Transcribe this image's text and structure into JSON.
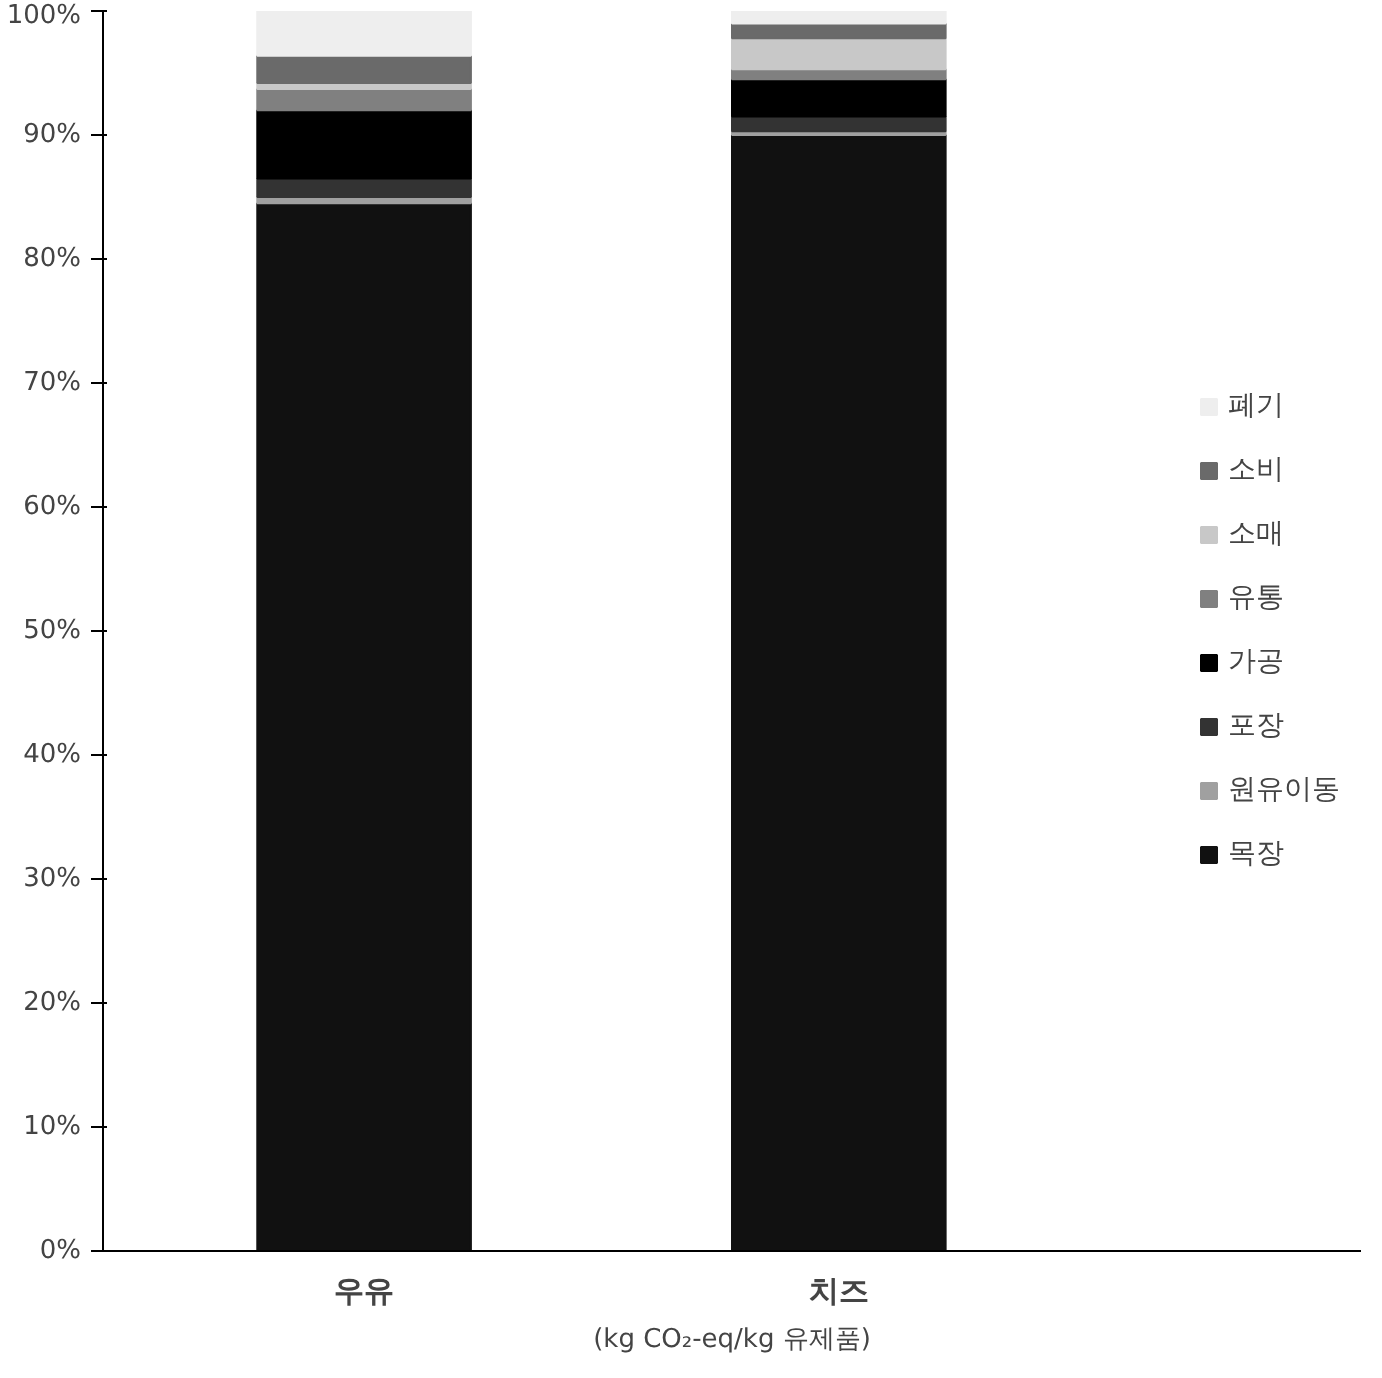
{
  "chart_data": {
    "type": "bar",
    "stacked": true,
    "categories": [
      "우유",
      "치즈"
    ],
    "xlabel": "(kg CO₂-eq/kg 유제품)",
    "series": [
      {
        "name": "목장",
        "color": "#111111",
        "values": [
          84.5,
          90
        ]
      },
      {
        "name": "원유이동",
        "color": "#a0a0a0",
        "values": [
          0.5,
          0.3
        ]
      },
      {
        "name": "포장",
        "color": "#333333",
        "values": [
          1.5,
          1.2
        ]
      },
      {
        "name": "가공",
        "color": "#000000",
        "values": [
          5.5,
          3
        ]
      },
      {
        "name": "유통",
        "color": "#808080",
        "values": [
          1.7,
          0.8
        ]
      },
      {
        "name": "소매",
        "color": "#c8c8c8",
        "values": [
          0.5,
          2.5
        ]
      },
      {
        "name": "소비",
        "color": "#6a6a6a",
        "values": [
          2.2,
          1.2
        ]
      },
      {
        "name": "폐기",
        "color": "#eeeeee",
        "values": [
          3.6,
          1
        ]
      }
    ],
    "ylim": [
      0,
      100
    ],
    "yticks": [
      {
        "value": 0,
        "label": "0%"
      },
      {
        "value": 10,
        "label": "10%"
      },
      {
        "value": 20,
        "label": "20%"
      },
      {
        "value": 30,
        "label": "30%"
      },
      {
        "value": 40,
        "label": "40%"
      },
      {
        "value": 50,
        "label": "50%"
      },
      {
        "value": 60,
        "label": "60%"
      },
      {
        "value": 70,
        "label": "70%"
      },
      {
        "value": 80,
        "label": "80%"
      },
      {
        "value": 90,
        "label": "90%"
      },
      {
        "value": 100,
        "label": "100%"
      }
    ],
    "legend": "right",
    "grid": false
  }
}
